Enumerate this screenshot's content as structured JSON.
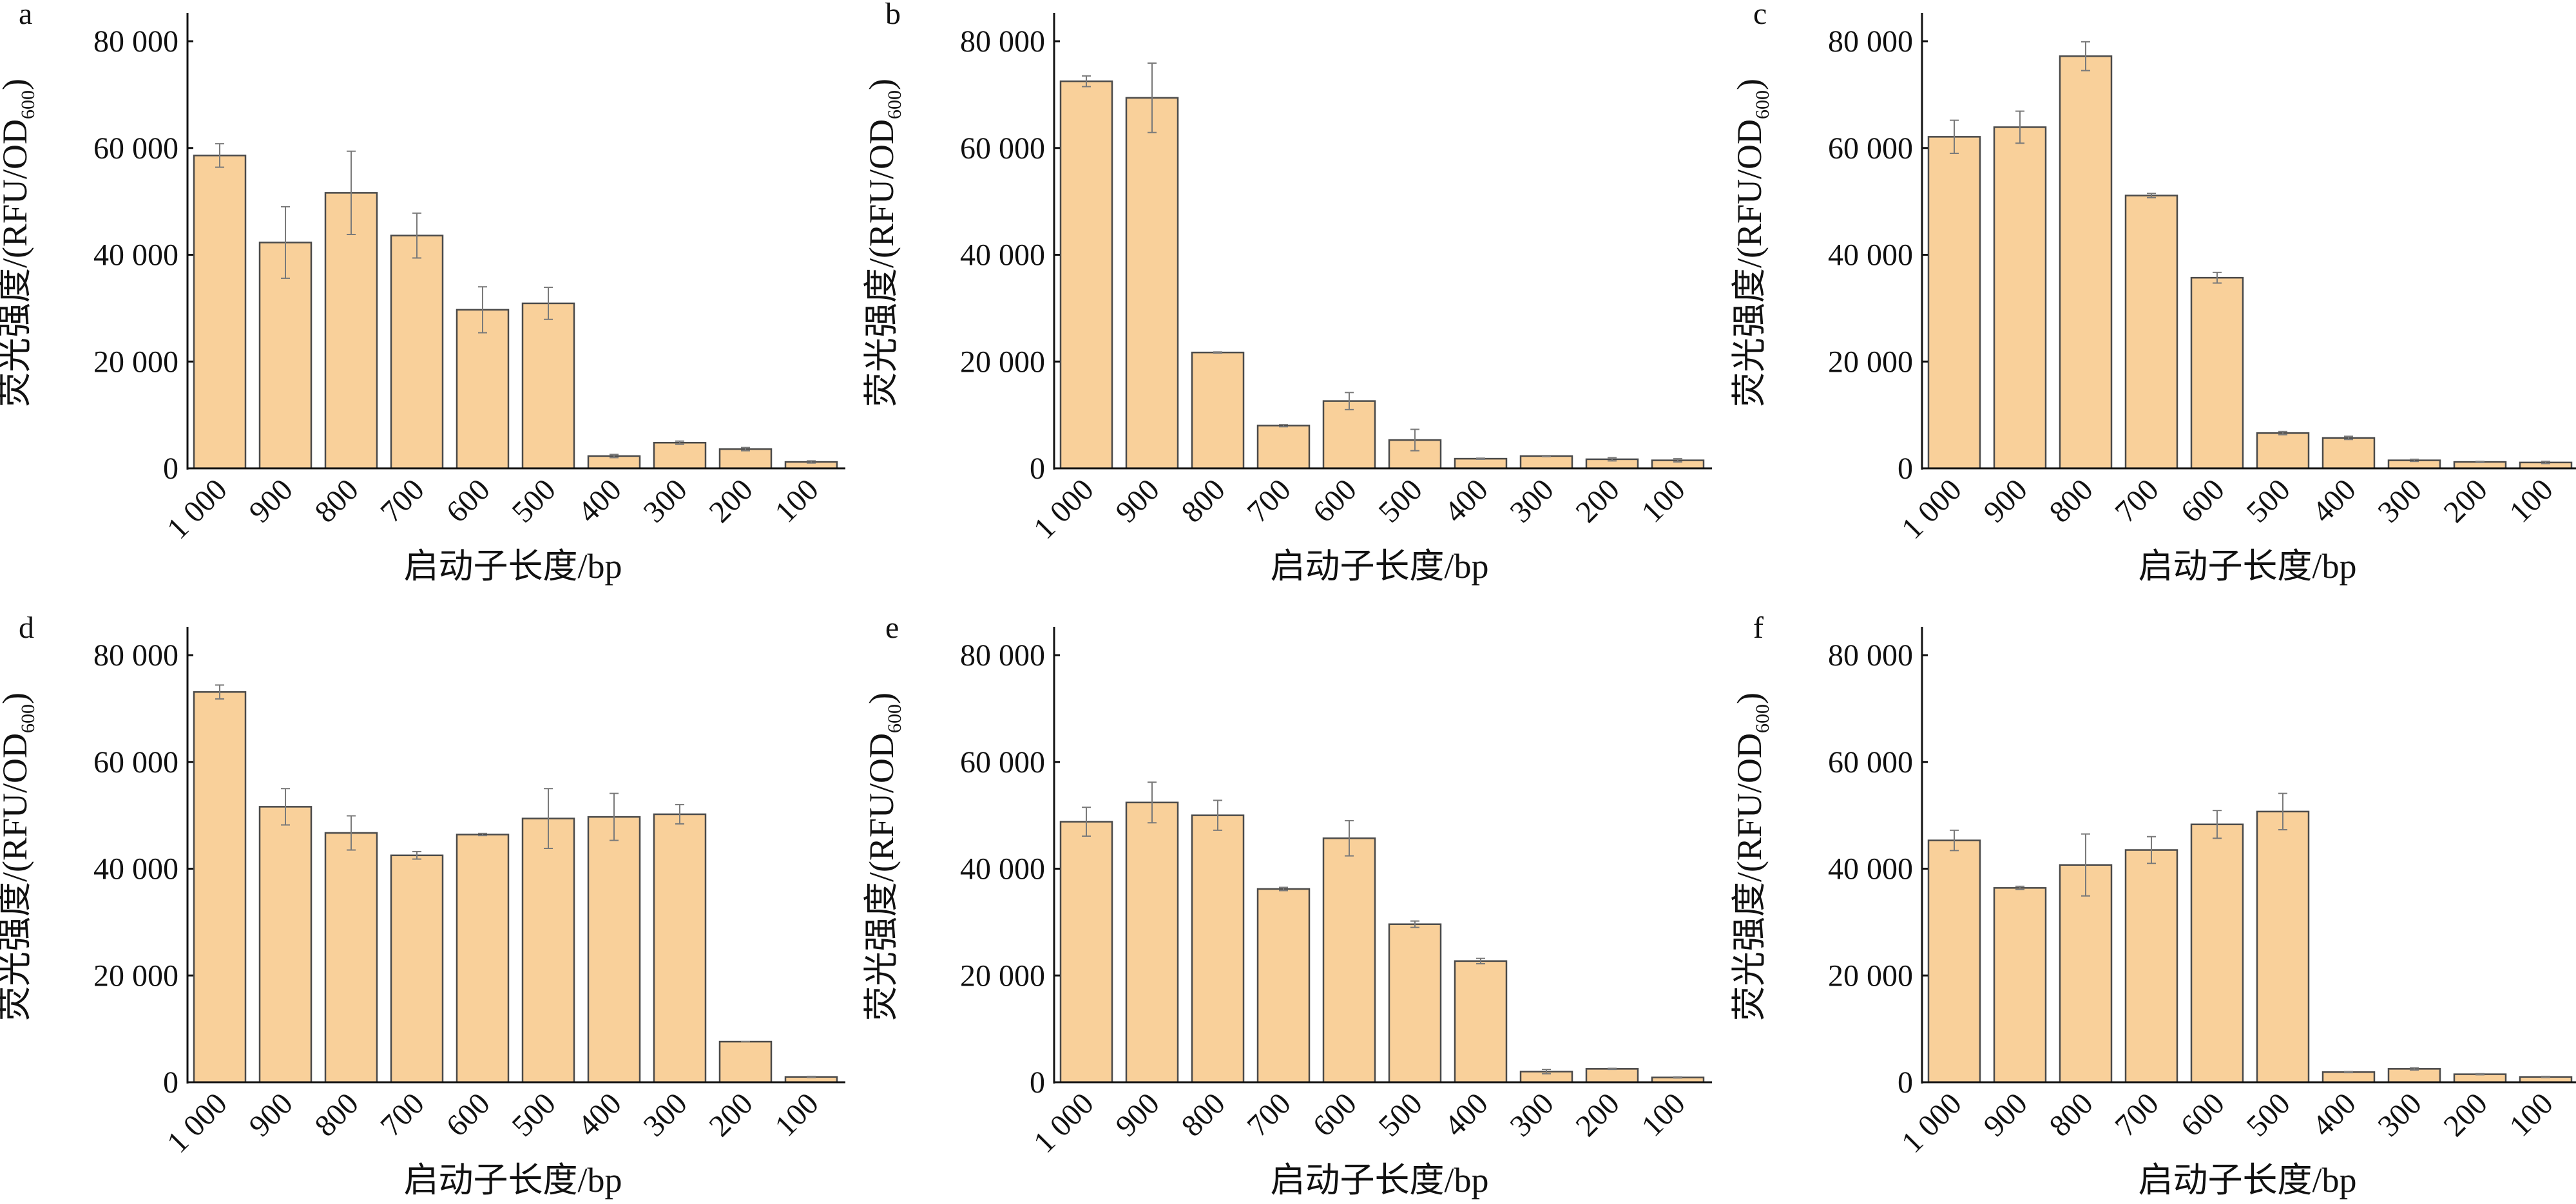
{
  "colors": {
    "bar_fill": "#f9d09a",
    "bar_stroke": "#4a4a4a",
    "error_bar": "#7a7a7a",
    "axis": "#111111"
  },
  "chart_data": [
    {
      "panel": "a",
      "type": "bar",
      "xlabel": "启动子长度/bp",
      "ylabel": {
        "main": "荧光强度/(RFU/OD",
        "sub": "600",
        "end": ")"
      },
      "categories": [
        "1 000",
        "900",
        "800",
        "700",
        "600",
        "500",
        "400",
        "300",
        "200",
        "100"
      ],
      "values": [
        58600,
        42300,
        51600,
        43600,
        29700,
        30900,
        2300,
        4800,
        3600,
        1200
      ],
      "errors": [
        2200,
        6700,
        7800,
        4200,
        4300,
        3000,
        300,
        300,
        300,
        200
      ],
      "ylim": [
        0,
        80000
      ],
      "yticks": [
        0,
        20000,
        40000,
        60000,
        80000
      ],
      "ytick_labels": [
        "0",
        "20 000",
        "40 000",
        "60 000",
        "80 000"
      ],
      "grid": false
    },
    {
      "panel": "b",
      "type": "bar",
      "xlabel": "启动子长度/bp",
      "ylabel": {
        "main": "荧光强度/(RFU/OD",
        "sub": "600",
        "end": ")"
      },
      "categories": [
        "1 000",
        "900",
        "800",
        "700",
        "600",
        "500",
        "400",
        "300",
        "200",
        "100"
      ],
      "values": [
        72500,
        69400,
        21700,
        8000,
        12600,
        5300,
        1800,
        2300,
        1700,
        1500
      ],
      "errors": [
        1000,
        6500,
        100,
        200,
        1600,
        2000,
        100,
        100,
        300,
        300
      ],
      "ylim": [
        0,
        80000
      ],
      "yticks": [
        0,
        20000,
        40000,
        60000,
        80000
      ],
      "ytick_labels": [
        "0",
        "20 000",
        "40 000",
        "60 000",
        "80 000"
      ],
      "grid": false
    },
    {
      "panel": "c",
      "type": "bar",
      "xlabel": "启动子长度/bp",
      "ylabel": {
        "main": "荧光强度/(RFU/OD",
        "sub": "600",
        "end": ")"
      },
      "categories": [
        "1 000",
        "900",
        "800",
        "700",
        "600",
        "500",
        "400",
        "300",
        "200",
        "100"
      ],
      "values": [
        62100,
        63900,
        77200,
        51100,
        35700,
        6600,
        5700,
        1500,
        1200,
        1100
      ],
      "errors": [
        3100,
        3000,
        2700,
        400,
        1000,
        300,
        300,
        200,
        100,
        200
      ],
      "ylim": [
        0,
        80000
      ],
      "yticks": [
        0,
        20000,
        40000,
        60000,
        80000
      ],
      "ytick_labels": [
        "0",
        "20 000",
        "40 000",
        "60 000",
        "80 000"
      ],
      "grid": false
    },
    {
      "panel": "d",
      "type": "bar",
      "xlabel": "启动子长度/bp",
      "ylabel": {
        "main": "荧光强度/(RFU/OD",
        "sub": "600",
        "end": ")"
      },
      "categories": [
        "1 000",
        "900",
        "800",
        "700",
        "600",
        "500",
        "400",
        "300",
        "200",
        "100"
      ],
      "values": [
        73100,
        51600,
        46700,
        42500,
        46400,
        49400,
        49700,
        50200,
        7600,
        1000
      ],
      "errors": [
        1300,
        3400,
        3200,
        700,
        200,
        5600,
        4400,
        1800,
        0,
        100
      ],
      "ylim": [
        0,
        80000
      ],
      "yticks": [
        0,
        20000,
        40000,
        60000,
        80000
      ],
      "ytick_labels": [
        "0",
        "20 000",
        "40 000",
        "60 000",
        "80 000"
      ],
      "grid": false
    },
    {
      "panel": "e",
      "type": "bar",
      "xlabel": "启动子长度/bp",
      "ylabel": {
        "main": "荧光强度/(RFU/OD",
        "sub": "600",
        "end": ")"
      },
      "categories": [
        "1 000",
        "900",
        "800",
        "700",
        "600",
        "500",
        "400",
        "300",
        "200",
        "100"
      ],
      "values": [
        48800,
        52400,
        50000,
        36200,
        45700,
        29600,
        22700,
        2000,
        2500,
        900
      ],
      "errors": [
        2700,
        3800,
        2800,
        300,
        3300,
        600,
        500,
        400,
        100,
        100
      ],
      "ylim": [
        0,
        80000
      ],
      "yticks": [
        0,
        20000,
        40000,
        60000,
        80000
      ],
      "ytick_labels": [
        "0",
        "20 000",
        "40 000",
        "60 000",
        "80 000"
      ],
      "grid": false
    },
    {
      "panel": "f",
      "type": "bar",
      "xlabel": "启动子长度/bp",
      "ylabel": {
        "main": "荧光强度/(RFU/OD",
        "sub": "600",
        "end": ")"
      },
      "categories": [
        "1 000",
        "900",
        "800",
        "700",
        "600",
        "500",
        "400",
        "300",
        "200",
        "100"
      ],
      "values": [
        45300,
        36400,
        40700,
        43500,
        48300,
        50700,
        1900,
        2500,
        1500,
        1000
      ],
      "errors": [
        1900,
        300,
        5800,
        2500,
        2600,
        3400,
        100,
        200,
        100,
        100
      ],
      "ylim": [
        0,
        80000
      ],
      "yticks": [
        0,
        20000,
        40000,
        60000,
        80000
      ],
      "ytick_labels": [
        "0",
        "20 000",
        "40 000",
        "60 000",
        "80 000"
      ],
      "grid": false
    }
  ]
}
